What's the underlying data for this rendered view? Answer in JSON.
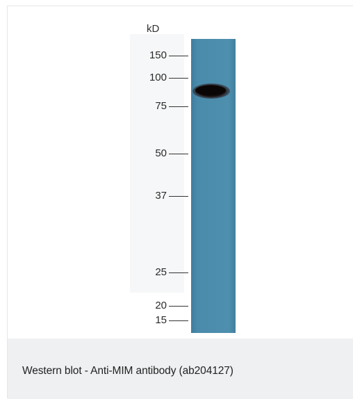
{
  "figure": {
    "unit_label": "kD",
    "markers": [
      {
        "label": "150"
      },
      {
        "label": "100"
      },
      {
        "label": "75"
      },
      {
        "label": "50"
      },
      {
        "label": "37"
      },
      {
        "label": "25"
      },
      {
        "label": "20"
      },
      {
        "label": "15"
      }
    ],
    "lane_color": "#4e8fae",
    "band_color": "#151010"
  },
  "caption": {
    "text": "Western blot - Anti-MIM antibody (ab204127)"
  }
}
